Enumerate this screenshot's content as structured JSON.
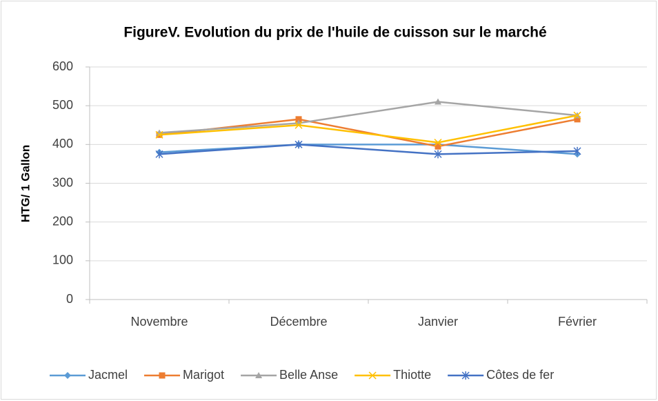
{
  "chart_data": {
    "type": "line",
    "title": "FigureV. Evolution du prix de l'huile de cuisson sur le marché",
    "y_label": "HTG/ 1 Gallon",
    "categories": [
      "Novembre",
      "Décembre",
      "Janvier",
      "Février"
    ],
    "series": [
      {
        "name": "Jacmel",
        "color": "#5b9bd5",
        "marker": "diamond",
        "values": [
          380,
          400,
          400,
          375
        ]
      },
      {
        "name": "Marigot",
        "color": "#ed7d31",
        "marker": "square",
        "values": [
          425,
          465,
          395,
          465
        ]
      },
      {
        "name": "Belle Anse",
        "color": "#a5a5a5",
        "marker": "triangle",
        "values": [
          430,
          455,
          510,
          475
        ]
      },
      {
        "name": "Thiotte",
        "color": "#ffc000",
        "marker": "x",
        "values": [
          425,
          450,
          405,
          475
        ]
      },
      {
        "name": "Côtes de fer",
        "color": "#4472c4",
        "marker": "star",
        "values": [
          375,
          400,
          375,
          383
        ]
      }
    ],
    "ylim": [
      0,
      600
    ],
    "yticks": [
      0,
      100,
      200,
      300,
      400,
      500,
      600
    ],
    "grid": true,
    "legend": "bottom"
  }
}
